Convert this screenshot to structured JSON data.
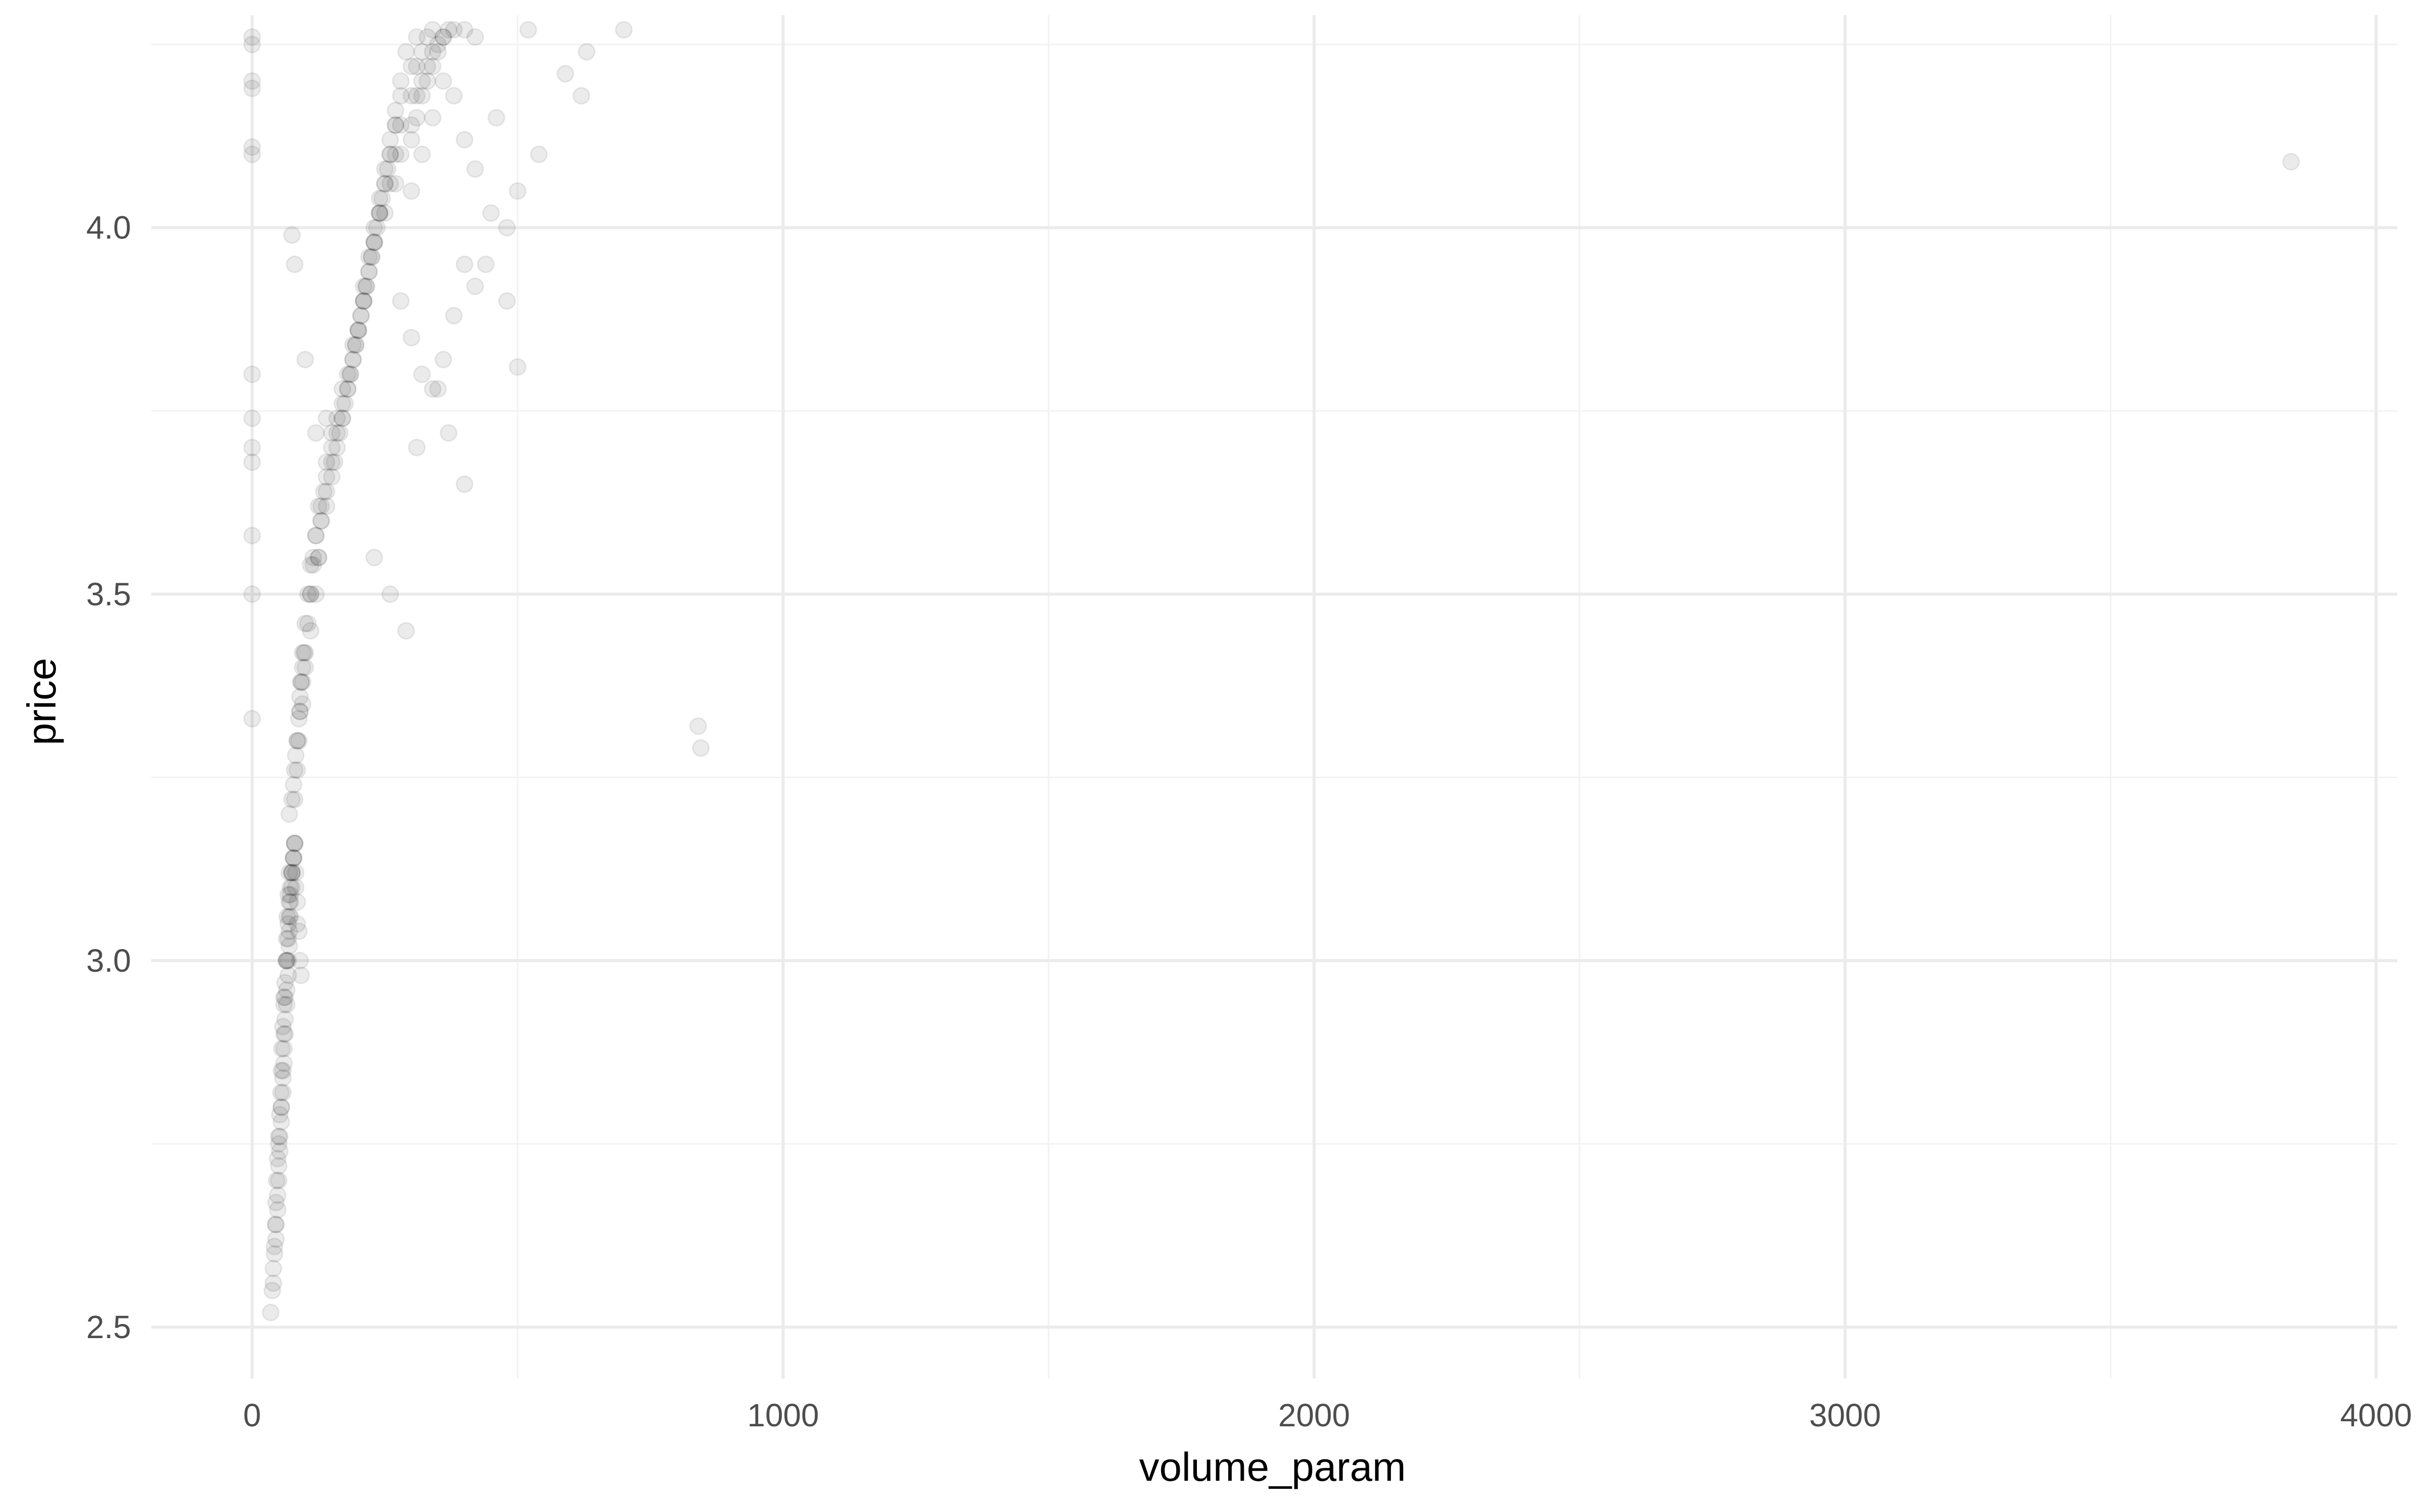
{
  "chart_data": {
    "type": "scatter",
    "title": "",
    "xlabel": "volume_param",
    "ylabel": "price",
    "xlim": [
      -190,
      4040
    ],
    "ylim": [
      2.43,
      4.29
    ],
    "x_ticks": [
      0,
      1000,
      2000,
      3000,
      4000
    ],
    "x_tick_labels": [
      "0",
      "1000",
      "2000",
      "3000",
      "4000"
    ],
    "y_ticks": [
      2.5,
      3.0,
      3.5,
      4.0
    ],
    "y_tick_labels": [
      "2.5",
      "3.0",
      "3.5",
      "4.0"
    ],
    "grid": true,
    "point_color": "#000000",
    "point_alpha": 0.08,
    "series": [
      {
        "x": [
          35,
          38,
          40,
          42,
          44,
          45,
          46,
          48,
          50,
          52,
          54,
          55,
          56,
          58,
          60,
          62,
          64,
          65,
          66,
          68,
          70,
          40,
          42,
          45,
          48,
          50,
          52,
          55,
          58,
          60,
          62,
          65,
          68,
          70,
          72,
          75,
          45,
          48,
          50,
          52,
          55,
          58,
          60,
          62,
          65,
          68,
          70,
          72,
          75,
          78,
          80,
          50,
          55,
          58,
          60,
          62,
          65,
          68,
          70,
          72,
          75,
          78,
          80,
          82,
          85,
          60,
          65,
          68,
          70,
          72,
          75,
          78,
          80,
          82,
          85,
          88,
          90,
          92,
          70,
          75,
          78,
          80,
          82,
          85,
          88,
          90,
          92,
          95,
          98,
          80,
          85,
          88,
          90,
          92,
          95,
          100,
          105,
          110,
          85,
          90,
          95,
          100,
          105,
          110,
          115,
          120,
          125,
          95,
          100,
          110,
          120,
          125,
          130,
          135,
          140,
          150,
          110,
          115,
          120,
          130,
          140,
          150,
          160,
          170,
          125,
          130,
          140,
          150,
          160,
          170,
          180,
          190,
          140,
          150,
          160,
          170,
          180,
          190,
          200,
          210,
          155,
          165,
          175,
          185,
          195,
          205,
          215,
          225,
          170,
          180,
          190,
          200,
          210,
          220,
          230,
          240,
          185,
          195,
          205,
          215,
          225,
          235,
          245,
          255,
          200,
          210,
          220,
          230,
          240,
          250,
          260,
          270,
          210,
          220,
          230,
          240,
          250,
          260,
          270,
          280,
          290,
          230,
          240,
          250,
          260,
          270,
          280,
          300,
          310,
          250,
          260,
          270,
          280,
          300,
          310,
          320,
          330,
          340,
          270,
          280,
          300,
          310,
          320,
          330,
          340,
          350,
          360,
          370,
          300,
          310,
          320,
          330,
          340,
          350,
          360,
          380,
          400,
          420,
          280,
          300,
          320,
          340,
          360,
          380,
          400,
          300,
          320,
          340,
          360,
          380,
          400,
          420,
          0,
          0,
          0,
          0,
          0,
          0,
          0,
          0,
          0,
          0,
          0,
          0,
          0,
          460,
          480,
          500,
          520,
          540,
          590,
          620,
          630,
          700,
          420,
          440,
          450,
          480,
          500,
          230,
          260,
          290,
          310,
          350,
          370,
          400,
          75,
          80,
          100,
          120,
          140,
          840,
          845,
          3840
        ],
        "y": [
          2.52,
          2.55,
          2.58,
          2.61,
          2.64,
          2.67,
          2.7,
          2.73,
          2.76,
          2.79,
          2.82,
          2.85,
          2.88,
          2.91,
          2.94,
          2.97,
          3.0,
          3.03,
          3.06,
          3.09,
          3.12,
          2.56,
          2.6,
          2.64,
          2.68,
          2.72,
          2.76,
          2.8,
          2.84,
          2.88,
          2.92,
          2.96,
          3.0,
          3.04,
          3.08,
          3.12,
          2.62,
          2.66,
          2.7,
          2.74,
          2.78,
          2.82,
          2.86,
          2.9,
          2.94,
          2.98,
          3.02,
          3.06,
          3.1,
          3.14,
          3.16,
          2.75,
          2.8,
          2.85,
          2.9,
          2.95,
          3.0,
          3.03,
          3.06,
          3.09,
          3.12,
          3.14,
          3.16,
          3.1,
          3.05,
          2.95,
          3.0,
          3.05,
          3.08,
          3.1,
          3.12,
          3.14,
          3.16,
          3.12,
          3.08,
          3.04,
          3.0,
          2.98,
          3.2,
          3.22,
          3.24,
          3.26,
          3.28,
          3.3,
          3.33,
          3.36,
          3.38,
          3.4,
          3.42,
          3.22,
          3.26,
          3.3,
          3.34,
          3.38,
          3.42,
          3.46,
          3.5,
          3.54,
          3.3,
          3.34,
          3.38,
          3.42,
          3.46,
          3.5,
          3.54,
          3.58,
          3.62,
          3.35,
          3.4,
          3.45,
          3.5,
          3.55,
          3.6,
          3.64,
          3.68,
          3.72,
          3.5,
          3.55,
          3.58,
          3.62,
          3.66,
          3.7,
          3.74,
          3.78,
          3.55,
          3.6,
          3.64,
          3.68,
          3.72,
          3.76,
          3.8,
          3.84,
          3.62,
          3.66,
          3.7,
          3.74,
          3.78,
          3.82,
          3.86,
          3.9,
          3.68,
          3.72,
          3.76,
          3.8,
          3.84,
          3.88,
          3.92,
          3.96,
          3.74,
          3.78,
          3.82,
          3.86,
          3.9,
          3.94,
          3.98,
          4.02,
          3.8,
          3.84,
          3.88,
          3.92,
          3.96,
          4.0,
          4.04,
          4.08,
          3.86,
          3.9,
          3.94,
          3.98,
          4.02,
          4.06,
          4.1,
          4.14,
          3.92,
          3.96,
          4.0,
          4.04,
          4.08,
          4.12,
          4.16,
          4.2,
          4.24,
          3.98,
          4.02,
          4.06,
          4.1,
          4.14,
          4.18,
          4.22,
          4.26,
          4.02,
          4.06,
          4.1,
          4.14,
          4.18,
          4.22,
          4.24,
          4.26,
          4.27,
          4.06,
          4.1,
          4.14,
          4.18,
          4.2,
          4.22,
          4.24,
          4.25,
          4.26,
          4.27,
          4.12,
          4.15,
          4.18,
          4.2,
          4.22,
          4.24,
          4.26,
          4.27,
          4.27,
          4.26,
          3.9,
          3.85,
          3.8,
          3.78,
          3.82,
          3.88,
          3.95,
          4.05,
          4.1,
          4.15,
          4.2,
          4.18,
          4.12,
          4.08,
          4.26,
          4.25,
          4.2,
          4.19,
          4.11,
          4.1,
          3.8,
          3.74,
          3.7,
          3.68,
          3.58,
          3.5,
          3.33,
          4.15,
          4.0,
          4.05,
          4.27,
          4.1,
          4.21,
          4.18,
          4.24,
          4.27,
          3.92,
          3.95,
          4.02,
          3.9,
          3.81,
          3.55,
          3.5,
          3.45,
          3.7,
          3.78,
          3.72,
          3.65,
          3.99,
          3.95,
          3.82,
          3.72,
          3.74,
          3.32,
          3.29,
          4.09
        ]
      }
    ]
  }
}
